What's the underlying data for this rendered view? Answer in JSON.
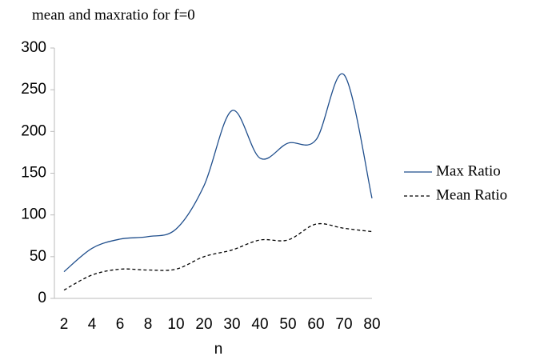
{
  "chart_data": {
    "type": "line",
    "title": "mean and maxratio for f=0",
    "x_label": "n",
    "categories": [
      "2",
      "4",
      "6",
      "8",
      "10",
      "20",
      "30",
      "40",
      "50",
      "60",
      "70",
      "80"
    ],
    "series": [
      {
        "name": "Max Ratio",
        "color": "#1f4e8c",
        "dash": "none",
        "values": [
          32,
          60,
          71,
          74,
          83,
          135,
          225,
          168,
          186,
          190,
          268,
          120
        ]
      },
      {
        "name": "Mean Ratio",
        "color": "#000000",
        "dash": "4,3",
        "values": [
          10,
          28,
          35,
          34,
          35,
          50,
          58,
          70,
          70,
          89,
          84,
          80
        ]
      }
    ],
    "ylim": [
      0,
      300
    ],
    "yticks": [
      0,
      50,
      100,
      150,
      200,
      250,
      300
    ],
    "smooth": true
  }
}
